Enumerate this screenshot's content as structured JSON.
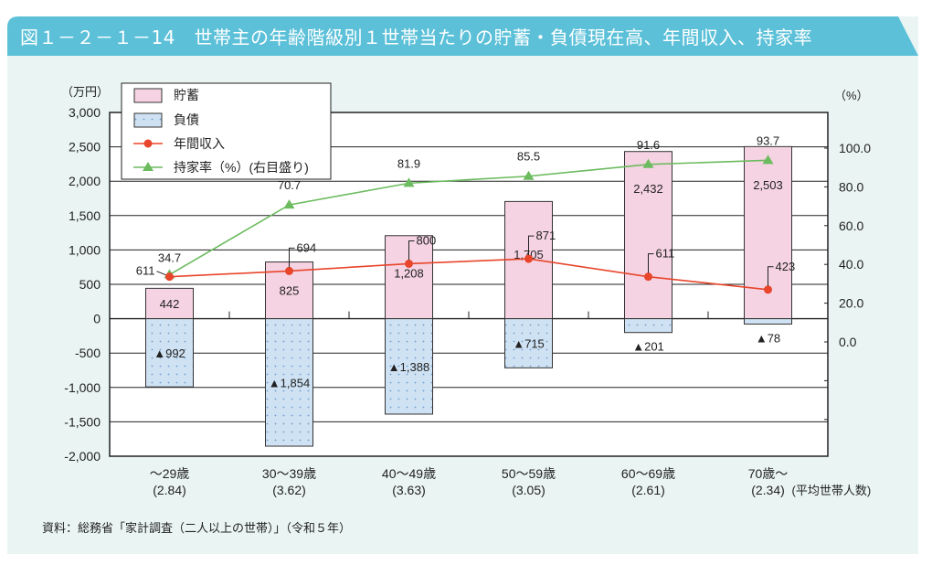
{
  "title": "図１－２－１－14　世帯主の年齢階級別１世帯当たりの貯蓄・負債現在高、年間収入、持家率",
  "source": "資料：総務省「家計調査（二人以上の世帯）」（令和５年）",
  "colors": {
    "title_bar": "#5bc0d8",
    "savings": "#f5d3e2",
    "debt": "#cfe2f3",
    "income": "#e8452b",
    "homeownership": "#6cbb5e",
    "panel": "#eaf5f3"
  },
  "chart_data": {
    "type": "bar+line",
    "left_unit": "（万円）",
    "right_unit": "（%）",
    "left_ylim": [
      -2000,
      3000
    ],
    "left_ticks": [
      "3,000",
      "2,500",
      "2,000",
      "1,500",
      "1,000",
      "500",
      "0",
      "-500",
      "-1,000",
      "-1,500",
      "-2,000"
    ],
    "left_tick_values": [
      3000,
      2500,
      2000,
      1500,
      1000,
      500,
      0,
      -500,
      -1000,
      -1500,
      -2000
    ],
    "right_ticks": [
      "100.0",
      "80.0",
      "60.0",
      "40.0",
      "20.0",
      "0.0"
    ],
    "right_tick_values": [
      100,
      80,
      60,
      40,
      20,
      0
    ],
    "grid": true,
    "legend_position": "top-left",
    "categories": [
      "～29歳",
      "30～39歳",
      "40～49歳",
      "50～59歳",
      "60～69歳",
      "70歳～"
    ],
    "household_size": [
      "(2.84)",
      "(3.62)",
      "(3.63)",
      "(3.05)",
      "(2.61)",
      "(2.34)"
    ],
    "household_size_label": "(平均世帯人数)",
    "series": [
      {
        "name": "貯蓄",
        "type": "bar",
        "axis": "left",
        "values": [
          442,
          825,
          1208,
          1705,
          2432,
          2503
        ],
        "labels": [
          "442",
          "825",
          "1,208",
          "1,705",
          "2,432",
          "2,503"
        ]
      },
      {
        "name": "負債",
        "type": "bar",
        "axis": "left",
        "values": [
          -992,
          -1854,
          -1388,
          -715,
          -201,
          -78
        ],
        "labels": [
          "▲992",
          "▲1,854",
          "▲1,388",
          "▲715",
          "▲201",
          "▲78"
        ]
      },
      {
        "name": "年間収入",
        "type": "line",
        "axis": "left",
        "values": [
          611,
          694,
          800,
          871,
          611,
          423
        ],
        "labels": [
          "611",
          "694",
          "800",
          "871",
          "611",
          "423"
        ]
      },
      {
        "name": "持家率（%）(右目盛り)",
        "type": "line",
        "axis": "right",
        "values": [
          34.7,
          70.7,
          81.9,
          85.5,
          91.6,
          93.7
        ],
        "labels": [
          "34.7",
          "70.7",
          "81.9",
          "85.5",
          "91.6",
          "93.7"
        ]
      }
    ]
  }
}
